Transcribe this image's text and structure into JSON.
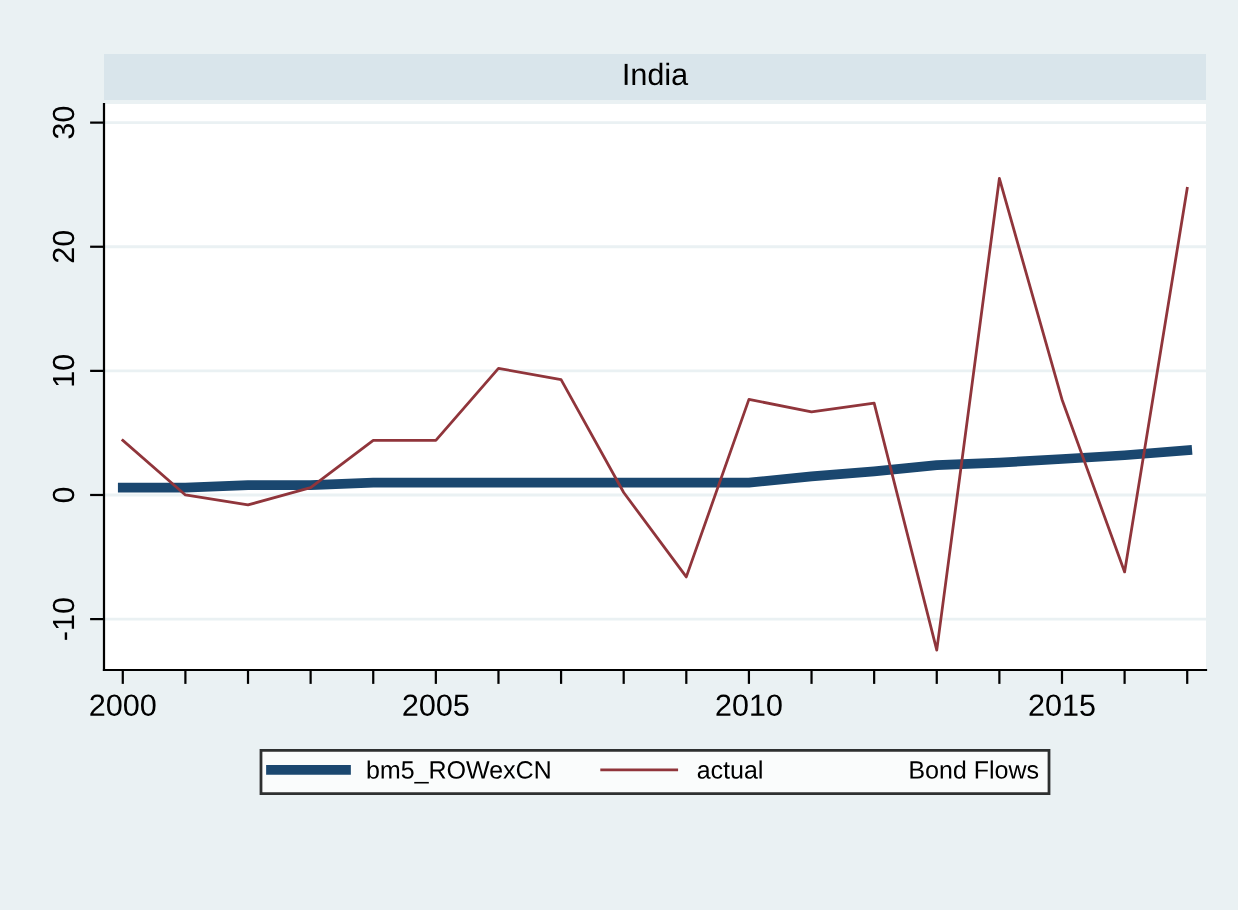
{
  "chart_data": {
    "type": "line",
    "title": "India",
    "legend_title": "Bond Flows",
    "x": [
      2000,
      2001,
      2002,
      2003,
      2004,
      2005,
      2006,
      2007,
      2008,
      2009,
      2010,
      2011,
      2012,
      2013,
      2014,
      2015,
      2016,
      2017
    ],
    "series": [
      {
        "name": "bm5_ROWexCN",
        "color": "#1a476f",
        "values": [
          0.6,
          0.6,
          0.8,
          0.8,
          1.0,
          1.0,
          1.0,
          1.0,
          1.0,
          1.0,
          1.0,
          1.5,
          1.9,
          2.4,
          2.6,
          2.9,
          3.2,
          3.6
        ]
      },
      {
        "name": "actual",
        "color": "#90353b",
        "values": [
          4.4,
          0.0,
          -0.8,
          0.6,
          4.4,
          4.4,
          10.2,
          9.3,
          0.2,
          -6.6,
          7.7,
          6.7,
          7.4,
          -12.5,
          25.5,
          7.7,
          -6.2,
          24.7
        ]
      }
    ],
    "xlim": [
      1999.7,
      2017.3
    ],
    "ylim": [
      -14.1,
      31.5
    ],
    "xticks": [
      2000,
      {
        "value": 2001,
        "label": null
      },
      {
        "value": 2002,
        "label": null
      },
      {
        "value": 2003,
        "label": null
      },
      {
        "value": 2004,
        "label": null
      },
      2005,
      {
        "value": 2006,
        "label": null
      },
      {
        "value": 2007,
        "label": null
      },
      {
        "value": 2008,
        "label": null
      },
      {
        "value": 2009,
        "label": null
      },
      2010,
      {
        "value": 2011,
        "label": null
      },
      {
        "value": 2012,
        "label": null
      },
      {
        "value": 2013,
        "label": null
      },
      {
        "value": 2014,
        "label": null
      },
      2015,
      {
        "value": 2016,
        "label": null
      },
      {
        "value": 2017,
        "label": null
      }
    ],
    "yticks": [
      -10,
      0,
      10,
      20,
      30
    ],
    "grid": "y",
    "legend": "bottom",
    "marker": "none",
    "line_style": "solid"
  }
}
